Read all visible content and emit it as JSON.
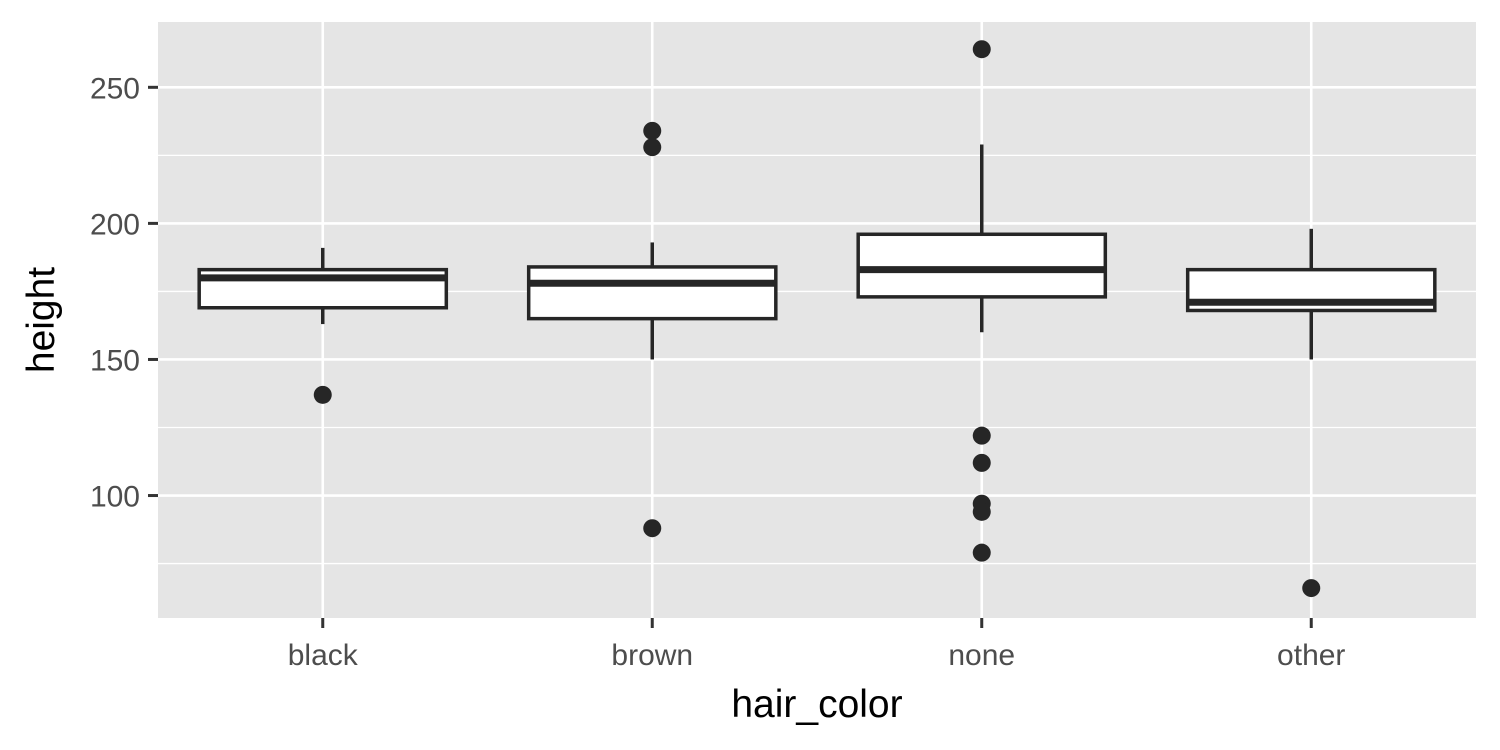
{
  "chart_data": {
    "type": "boxplot",
    "title": "",
    "xlabel": "hair_color",
    "ylabel": "height",
    "ylim": [
      55,
      274
    ],
    "y_ticks": [
      100,
      150,
      200,
      250
    ],
    "y_minor_ticks": [
      75,
      125,
      175,
      225
    ],
    "grid": true,
    "legend": "none",
    "categories": [
      "black",
      "brown",
      "none",
      "other"
    ],
    "boxes": [
      {
        "category": "black",
        "whisker_low": 163,
        "q1": 169,
        "median": 180,
        "q3": 183,
        "whisker_high": 191,
        "outliers": [
          137
        ]
      },
      {
        "category": "brown",
        "whisker_low": 150,
        "q1": 165,
        "median": 178,
        "q3": 184,
        "whisker_high": 193,
        "outliers": [
          234,
          228,
          88
        ]
      },
      {
        "category": "none",
        "whisker_low": 160,
        "q1": 173,
        "median": 183,
        "q3": 196,
        "whisker_high": 229,
        "outliers": [
          264,
          122,
          112,
          97,
          94,
          79
        ]
      },
      {
        "category": "other",
        "whisker_low": 150,
        "q1": 168,
        "median": 171,
        "q3": 183,
        "whisker_high": 198,
        "outliers": [
          66
        ]
      }
    ],
    "colors": {
      "panel_background": "#e5e5e5",
      "grid_line": "#ffffff",
      "box_fill": "#ffffff",
      "box_line": "#262626",
      "point": "#262626"
    }
  }
}
